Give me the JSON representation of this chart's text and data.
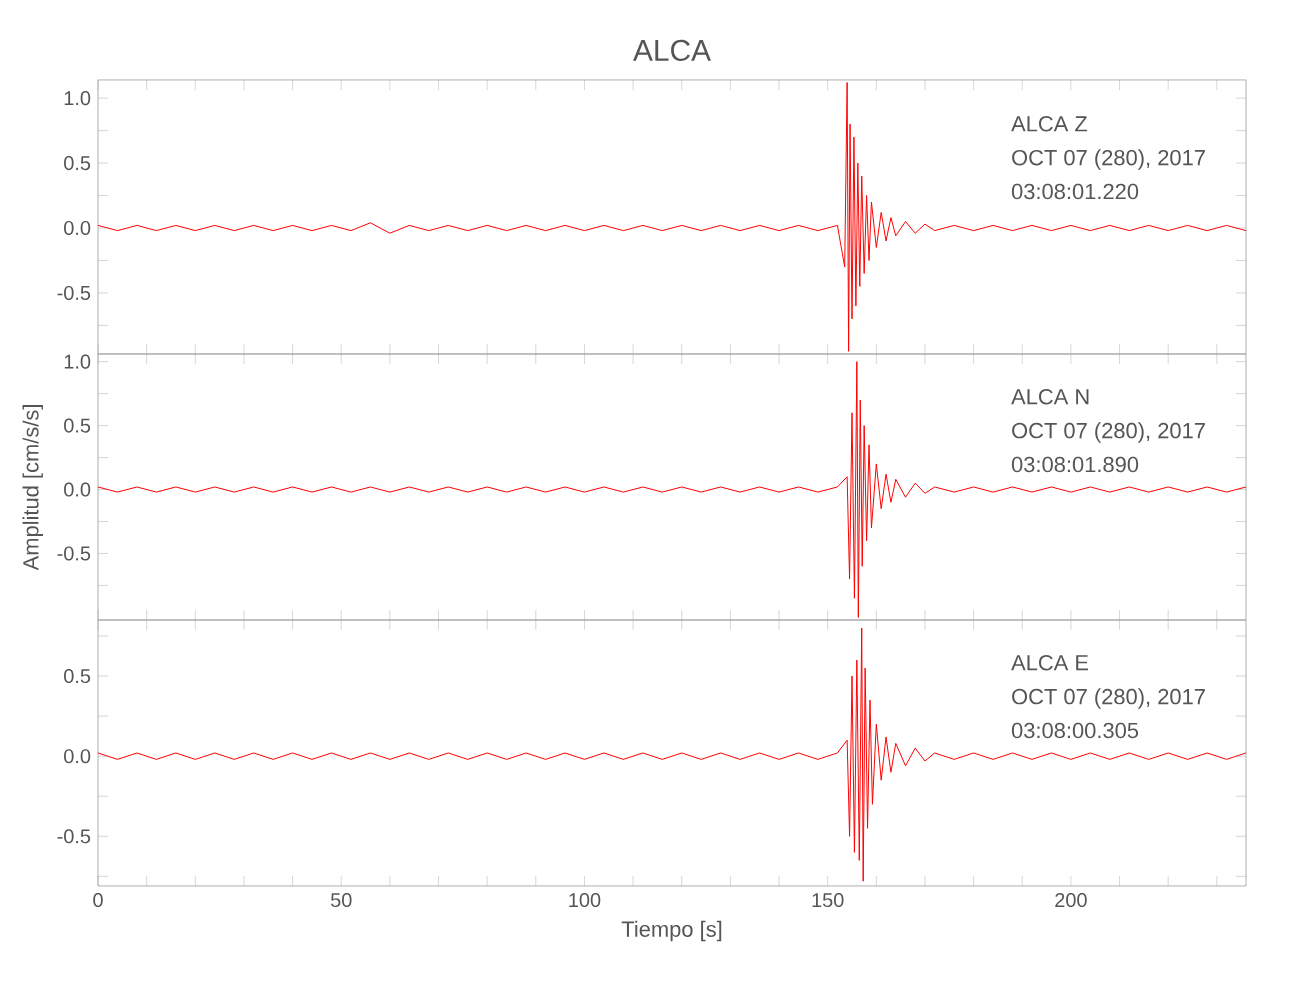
{
  "chart_data": [
    {
      "type": "line",
      "title": "ALCA",
      "series": [
        {
          "color": "#ff0000",
          "x": [
            0,
            4,
            8,
            12,
            16,
            20,
            24,
            28,
            32,
            36,
            40,
            44,
            48,
            52,
            56,
            60,
            64,
            68,
            72,
            76,
            80,
            84,
            88,
            92,
            96,
            100,
            104,
            108,
            112,
            116,
            120,
            124,
            128,
            132,
            136,
            140,
            144,
            148,
            152,
            153.5,
            154,
            154.3,
            154.6,
            155,
            155.4,
            155.8,
            156.2,
            156.6,
            157,
            157.5,
            158,
            158.5,
            159,
            160,
            161,
            162,
            163,
            164,
            166,
            168,
            170,
            172,
            176,
            180,
            184,
            188,
            192,
            196,
            200,
            204,
            208,
            212,
            216,
            220,
            224,
            228,
            232,
            236
          ],
          "values": [
            0.02,
            -0.02,
            0.02,
            -0.02,
            0.02,
            -0.02,
            0.02,
            -0.02,
            0.02,
            -0.02,
            0.02,
            -0.02,
            0.02,
            -0.02,
            0.04,
            -0.04,
            0.02,
            -0.02,
            0.02,
            -0.02,
            0.02,
            -0.02,
            0.02,
            -0.02,
            0.02,
            -0.02,
            0.02,
            -0.02,
            0.02,
            -0.02,
            0.02,
            -0.02,
            0.02,
            -0.02,
            0.02,
            -0.02,
            0.02,
            -0.02,
            0.02,
            -0.3,
            1.12,
            -0.95,
            0.8,
            -0.7,
            0.7,
            -0.6,
            0.5,
            -0.45,
            0.4,
            -0.35,
            0.25,
            -0.25,
            0.2,
            -0.15,
            0.12,
            -0.1,
            0.08,
            -0.06,
            0.05,
            -0.04,
            0.03,
            -0.02,
            0.02,
            -0.02,
            0.02,
            -0.02,
            0.02,
            -0.02,
            0.02,
            -0.02,
            0.02,
            -0.02,
            0.02,
            -0.02,
            0.02,
            -0.02,
            0.02,
            -0.02
          ]
        }
      ],
      "xlim": [
        0,
        236
      ],
      "ylim": [
        -0.97,
        1.14
      ],
      "xticks": [
        0,
        {
          "value": 10,
          "label": null
        },
        {
          "value": 20,
          "label": null
        },
        {
          "value": 30,
          "label": null
        },
        {
          "value": 40,
          "label": null
        },
        50,
        {
          "value": 60,
          "label": null
        },
        {
          "value": 70,
          "label": null
        },
        {
          "value": 80,
          "label": null
        },
        {
          "value": 90,
          "label": null
        },
        100,
        {
          "value": 110,
          "label": null
        },
        {
          "value": 120,
          "label": null
        },
        {
          "value": 130,
          "label": null
        },
        {
          "value": 140,
          "label": null
        },
        150,
        {
          "value": 160,
          "label": null
        },
        {
          "value": 170,
          "label": null
        },
        {
          "value": 180,
          "label": null
        },
        {
          "value": 190,
          "label": null
        },
        200,
        {
          "value": 210,
          "label": null
        },
        {
          "value": 220,
          "label": null
        },
        {
          "value": 230,
          "label": null
        }
      ],
      "yticks": [
        {
          "value": -0.75,
          "label": null
        },
        {
          "value": -0.5,
          "label": "-0.5"
        },
        {
          "value": -0.25,
          "label": null
        },
        {
          "value": 0,
          "label": "0.0"
        },
        {
          "value": 0.25,
          "label": null
        },
        {
          "value": 0.5,
          "label": "0.5"
        },
        {
          "value": 0.75,
          "label": null
        },
        {
          "value": 1,
          "label": "1.0"
        }
      ],
      "tick_labels": "y",
      "annotations": [
        "ALCA   Z",
        "OCT 07 (280), 2017",
        "03:08:01.220"
      ]
    },
    {
      "type": "line",
      "ylabel": "Amplitud  [cm/s/s]",
      "series": [
        {
          "color": "#ff0000",
          "x": [
            0,
            4,
            8,
            12,
            16,
            20,
            24,
            28,
            32,
            36,
            40,
            44,
            48,
            52,
            56,
            60,
            64,
            68,
            72,
            76,
            80,
            84,
            88,
            92,
            96,
            100,
            104,
            108,
            112,
            116,
            120,
            124,
            128,
            132,
            136,
            140,
            144,
            148,
            152,
            154,
            154.5,
            155,
            155.5,
            156,
            156.3,
            156.7,
            157.1,
            157.5,
            158,
            158.5,
            159,
            160,
            161,
            162,
            163,
            164,
            166,
            168,
            170,
            172,
            176,
            180,
            184,
            188,
            192,
            196,
            200,
            204,
            208,
            212,
            216,
            220,
            224,
            228,
            232,
            236
          ],
          "values": [
            0.02,
            -0.02,
            0.02,
            -0.02,
            0.02,
            -0.02,
            0.02,
            -0.02,
            0.02,
            -0.02,
            0.02,
            -0.02,
            0.02,
            -0.02,
            0.02,
            -0.02,
            0.02,
            -0.02,
            0.02,
            -0.02,
            0.02,
            -0.02,
            0.02,
            -0.02,
            0.02,
            -0.02,
            0.02,
            -0.02,
            0.02,
            -0.02,
            0.02,
            -0.02,
            0.02,
            -0.02,
            0.02,
            -0.02,
            0.02,
            -0.02,
            0.02,
            0.1,
            -0.7,
            0.6,
            -0.85,
            1.0,
            -1.0,
            0.7,
            -0.6,
            0.5,
            -0.4,
            0.35,
            -0.3,
            0.2,
            -0.15,
            0.12,
            -0.1,
            0.08,
            -0.06,
            0.05,
            -0.03,
            0.02,
            -0.02,
            0.02,
            -0.02,
            0.02,
            -0.02,
            0.02,
            -0.02,
            0.02,
            -0.02,
            0.02,
            -0.02,
            0.02,
            -0.02,
            0.02,
            -0.02,
            0.02
          ]
        }
      ],
      "xlim": [
        0,
        236
      ],
      "ylim": [
        -1.02,
        1.06
      ],
      "xticks": [
        0,
        {
          "value": 10,
          "label": null
        },
        {
          "value": 20,
          "label": null
        },
        {
          "value": 30,
          "label": null
        },
        {
          "value": 40,
          "label": null
        },
        50,
        {
          "value": 60,
          "label": null
        },
        {
          "value": 70,
          "label": null
        },
        {
          "value": 80,
          "label": null
        },
        {
          "value": 90,
          "label": null
        },
        100,
        {
          "value": 110,
          "label": null
        },
        {
          "value": 120,
          "label": null
        },
        {
          "value": 130,
          "label": null
        },
        {
          "value": 140,
          "label": null
        },
        150,
        {
          "value": 160,
          "label": null
        },
        {
          "value": 170,
          "label": null
        },
        {
          "value": 180,
          "label": null
        },
        {
          "value": 190,
          "label": null
        },
        200,
        {
          "value": 210,
          "label": null
        },
        {
          "value": 220,
          "label": null
        },
        {
          "value": 230,
          "label": null
        }
      ],
      "yticks": [
        {
          "value": -0.75,
          "label": null
        },
        {
          "value": -0.5,
          "label": "-0.5"
        },
        {
          "value": -0.25,
          "label": null
        },
        {
          "value": 0,
          "label": "0.0"
        },
        {
          "value": 0.25,
          "label": null
        },
        {
          "value": 0.5,
          "label": "0.5"
        },
        {
          "value": 0.75,
          "label": null
        },
        {
          "value": 1,
          "label": "1.0"
        }
      ],
      "tick_labels": "y",
      "annotations": [
        "ALCA   N",
        "OCT 07 (280), 2017",
        "03:08:01.890"
      ]
    },
    {
      "type": "line",
      "xlabel": "Tiempo  [s]",
      "series": [
        {
          "color": "#ff0000",
          "x": [
            0,
            4,
            8,
            12,
            16,
            20,
            24,
            28,
            32,
            36,
            40,
            44,
            48,
            52,
            56,
            60,
            64,
            68,
            72,
            76,
            80,
            84,
            88,
            92,
            96,
            100,
            104,
            108,
            112,
            116,
            120,
            124,
            128,
            132,
            136,
            140,
            144,
            148,
            152,
            154,
            154.5,
            155,
            155.5,
            156,
            156.5,
            157,
            157.3,
            157.7,
            158.2,
            158.7,
            159.2,
            160,
            161,
            162,
            163,
            164,
            166,
            168,
            170,
            172,
            176,
            180,
            184,
            188,
            192,
            196,
            200,
            204,
            208,
            212,
            216,
            220,
            224,
            228,
            232,
            236
          ],
          "values": [
            0.02,
            -0.02,
            0.02,
            -0.02,
            0.02,
            -0.02,
            0.02,
            -0.02,
            0.02,
            -0.02,
            0.02,
            -0.02,
            0.02,
            -0.02,
            0.02,
            -0.02,
            0.02,
            -0.02,
            0.02,
            -0.02,
            0.02,
            -0.02,
            0.02,
            -0.02,
            0.02,
            -0.02,
            0.02,
            -0.02,
            0.02,
            -0.02,
            0.02,
            -0.02,
            0.02,
            -0.02,
            0.02,
            -0.02,
            0.02,
            -0.02,
            0.02,
            0.1,
            -0.5,
            0.5,
            -0.6,
            0.6,
            -0.65,
            0.8,
            -0.78,
            0.55,
            -0.45,
            0.35,
            -0.3,
            0.2,
            -0.15,
            0.12,
            -0.1,
            0.08,
            -0.06,
            0.05,
            -0.03,
            0.02,
            -0.02,
            0.02,
            -0.02,
            0.02,
            -0.02,
            0.02,
            -0.02,
            0.02,
            -0.02,
            0.02,
            -0.02,
            0.02,
            -0.02,
            0.02,
            -0.02,
            0.02
          ]
        }
      ],
      "xlim": [
        0,
        236
      ],
      "ylim": [
        -0.81,
        0.85
      ],
      "xticks": [
        0,
        {
          "value": 10,
          "label": null
        },
        {
          "value": 20,
          "label": null
        },
        {
          "value": 30,
          "label": null
        },
        {
          "value": 40,
          "label": null
        },
        50,
        {
          "value": 60,
          "label": null
        },
        {
          "value": 70,
          "label": null
        },
        {
          "value": 80,
          "label": null
        },
        {
          "value": 90,
          "label": null
        },
        100,
        {
          "value": 110,
          "label": null
        },
        {
          "value": 120,
          "label": null
        },
        {
          "value": 130,
          "label": null
        },
        {
          "value": 140,
          "label": null
        },
        150,
        {
          "value": 160,
          "label": null
        },
        {
          "value": 170,
          "label": null
        },
        {
          "value": 180,
          "label": null
        },
        {
          "value": 190,
          "label": null
        },
        200,
        {
          "value": 210,
          "label": null
        },
        {
          "value": 220,
          "label": null
        },
        {
          "value": 230,
          "label": null
        }
      ],
      "yticks": [
        {
          "value": -0.75,
          "label": null
        },
        {
          "value": -0.5,
          "label": "-0.5"
        },
        {
          "value": -0.25,
          "label": null
        },
        {
          "value": 0,
          "label": "0.0"
        },
        {
          "value": 0.25,
          "label": null
        },
        {
          "value": 0.5,
          "label": "0.5"
        },
        {
          "value": 0.75,
          "label": null
        }
      ],
      "annotations": [
        "ALCA   E",
        "OCT 07 (280), 2017",
        "03:08:00.305"
      ]
    }
  ]
}
